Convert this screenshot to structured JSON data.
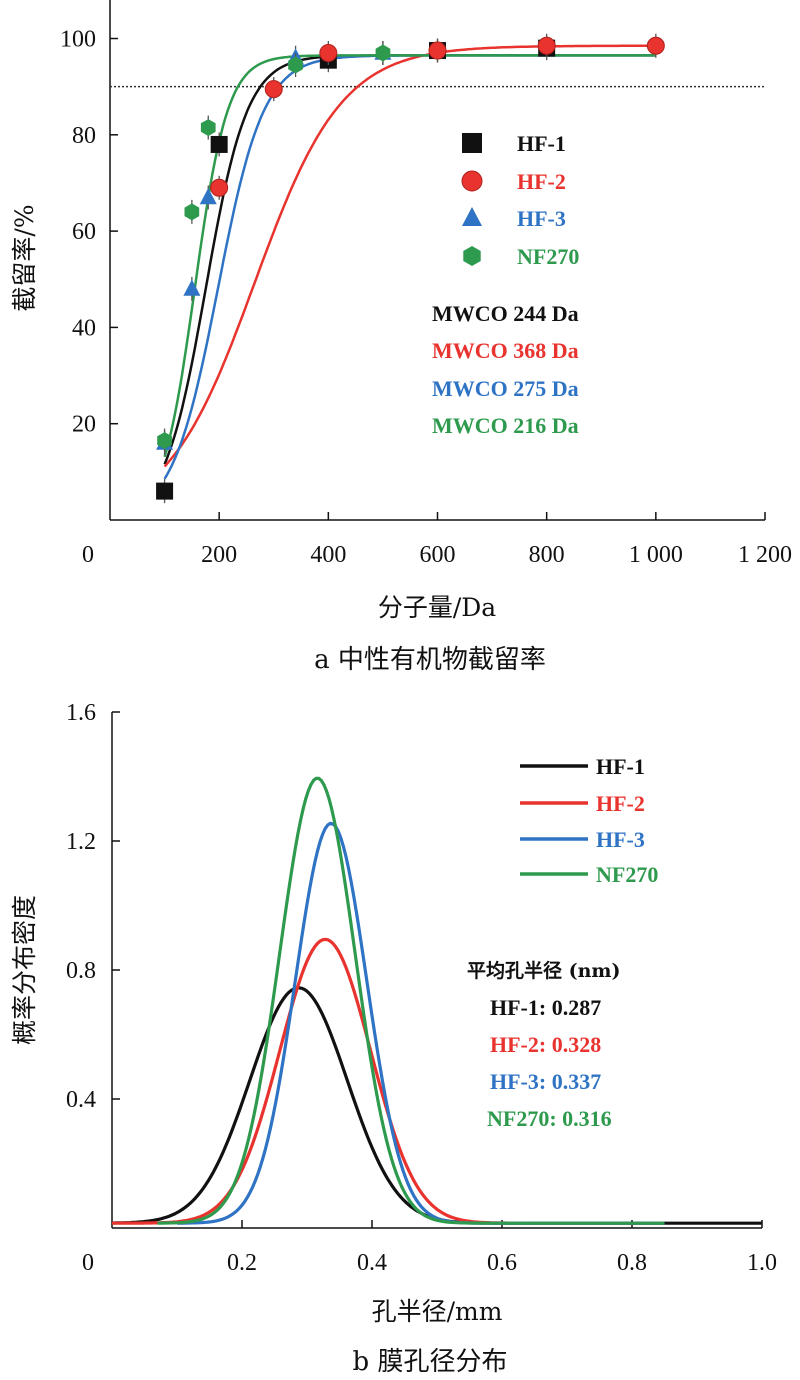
{
  "colors": {
    "HF-1": "#111111",
    "HF-2": "#e8332e",
    "HF-3": "#2f73c4",
    "NF270": "#2e9a4e"
  },
  "chart_data": [
    {
      "type": "scatter",
      "caption": "a 中性有机物截留率",
      "xlabel": "分子量/Da",
      "ylabel": "截留率/%",
      "xlim": [
        0,
        1200
      ],
      "ylim": [
        0,
        108
      ],
      "x_ticks": [
        0,
        200,
        400,
        600,
        800,
        1000,
        1200
      ],
      "x_tick_labels": [
        "0",
        "200",
        "400",
        "600",
        "800",
        "1 000",
        "1 200"
      ],
      "y_ticks": [
        20,
        40,
        60,
        80,
        100
      ],
      "y_tick_labels": [
        "20",
        "40",
        "60",
        "80",
        "100"
      ],
      "reference_line_y": 90,
      "legend_position": "right-middle",
      "series": [
        {
          "name": "HF-1",
          "marker": "square",
          "x": [
            100,
            200,
            400,
            600,
            800
          ],
          "y": [
            6,
            78,
            95.5,
            97.5,
            98
          ],
          "fit": {
            "plateau": 96.5,
            "mwco": 244,
            "rise": 38,
            "start": 100
          }
        },
        {
          "name": "HF-2",
          "marker": "circle",
          "x": [
            200,
            300,
            400,
            600,
            800,
            1000
          ],
          "y": [
            69,
            89.5,
            97,
            97.5,
            98.5,
            98.5
          ],
          "fit": {
            "plateau": 98.5,
            "mwco": 368,
            "rise": 80,
            "start": 100
          }
        },
        {
          "name": "HF-3",
          "marker": "triangle",
          "x": [
            100,
            150,
            180,
            340,
            500
          ],
          "y": [
            16,
            48,
            67,
            96,
            97
          ],
          "fit": {
            "plateau": 96.5,
            "mwco": 275,
            "rise": 42,
            "start": 100
          }
        },
        {
          "name": "NF270",
          "marker": "hexagon",
          "x": [
            100,
            150,
            180,
            340,
            500
          ],
          "y": [
            16.5,
            64,
            81.5,
            94.5,
            97
          ],
          "fit": {
            "plateau": 96.5,
            "mwco": 216,
            "rise": 30,
            "start": 100
          }
        }
      ],
      "annotations": [
        "MWCO 244 Da",
        "MWCO 368 Da",
        "MWCO 275 Da",
        "MWCO 216 Da"
      ]
    },
    {
      "type": "line",
      "caption": "b 膜孔径分布",
      "xlabel": "孔半径/mm",
      "ylabel": "概率分布密度",
      "xlim": [
        0,
        1.0
      ],
      "ylim": [
        0,
        1.6
      ],
      "x_ticks": [
        0,
        0.2,
        0.4,
        0.6,
        0.8,
        1.0
      ],
      "x_tick_labels": [
        "0",
        "0.2",
        "0.4",
        "0.6",
        "0.8",
        "1.0"
      ],
      "y_ticks": [
        0.4,
        0.8,
        1.2,
        1.6
      ],
      "y_tick_labels": [
        "0.4",
        "0.8",
        "1.2",
        "1.6"
      ],
      "legend_position": "top-right",
      "series": [
        {
          "name": "HF-1",
          "mean": 0.287,
          "peak": 0.73,
          "sigma": 0.075,
          "range": [
            0,
            1.0
          ]
        },
        {
          "name": "HF-2",
          "mean": 0.328,
          "peak": 0.88,
          "sigma": 0.07,
          "range": [
            0,
            0.85
          ]
        },
        {
          "name": "HF-3",
          "mean": 0.337,
          "peak": 1.24,
          "sigma": 0.055,
          "range": [
            0.1,
            0.85
          ]
        },
        {
          "name": "NF270",
          "mean": 0.316,
          "peak": 1.38,
          "sigma": 0.058,
          "range": [
            0.07,
            0.85
          ]
        }
      ],
      "annotation_title": "平均孔半径 (nm)",
      "annotations": [
        "HF-1: 0.287",
        "HF-2: 0.328",
        "HF-3: 0.337",
        "NF270: 0.316"
      ]
    }
  ]
}
